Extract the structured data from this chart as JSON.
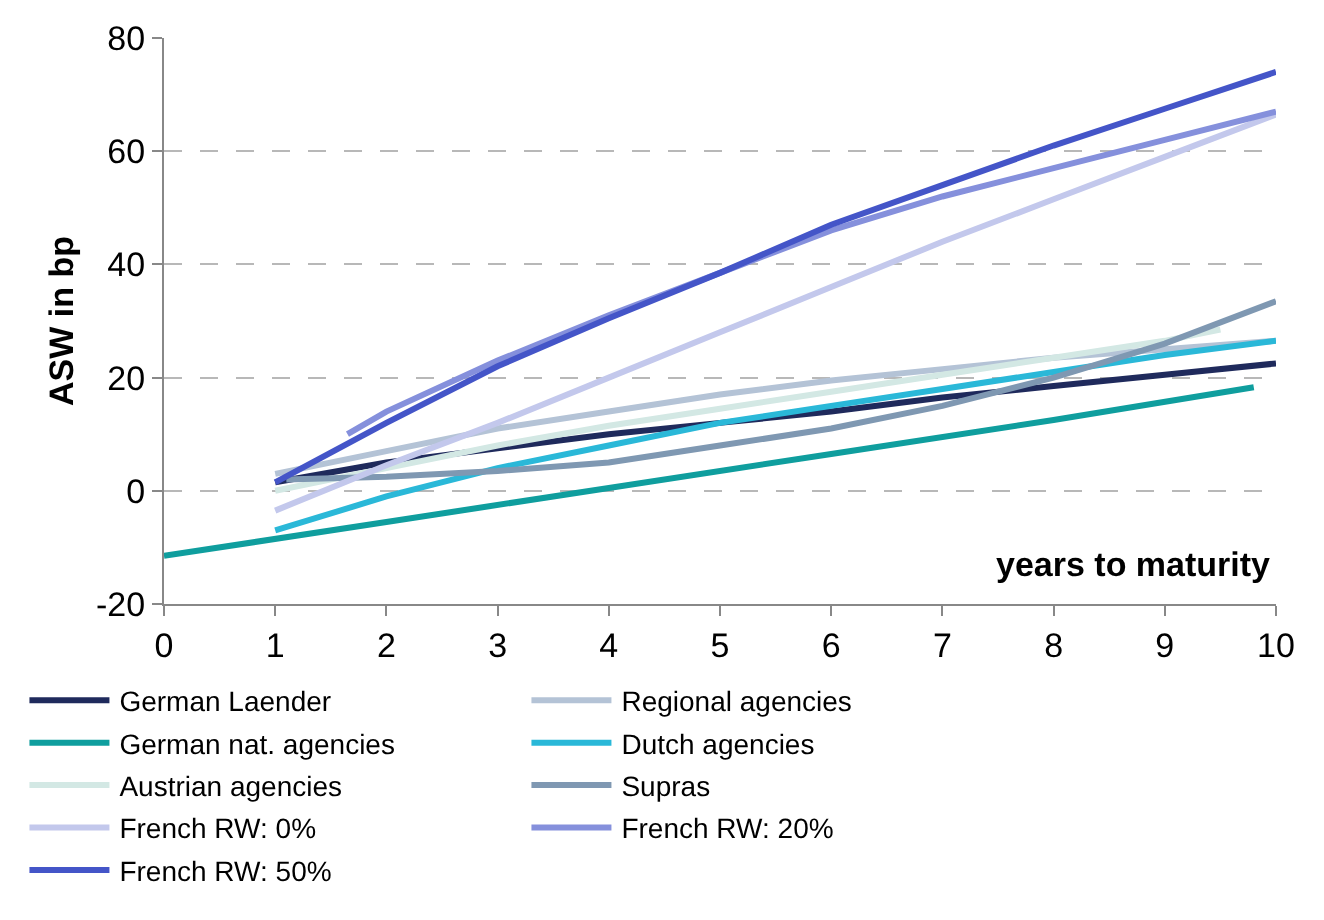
{
  "chart_data": {
    "type": "line",
    "ylabel": "ASW in bp",
    "xlabel": "years to maturity",
    "xlim": [
      0,
      10
    ],
    "xticks": [
      0,
      1,
      2,
      3,
      4,
      5,
      6,
      7,
      8,
      9,
      10
    ],
    "ylim": [
      -20,
      80
    ],
    "yticks": [
      -20,
      0,
      20,
      40,
      60,
      80
    ],
    "grid": "y",
    "legend": "bottom",
    "line_style": "solid",
    "marker": "none",
    "series": [
      {
        "name": "German Laender",
        "color": "#1f2a5c",
        "x": [
          1,
          2,
          3,
          4,
          5,
          6,
          7,
          8,
          9,
          10
        ],
        "values": [
          1.5,
          5,
          7.5,
          10,
          12,
          14,
          16.5,
          18.5,
          20.5,
          22.5
        ]
      },
      {
        "name": "Regional agencies",
        "color": "#b4c3d6",
        "x": [
          1,
          2,
          3,
          4,
          5,
          6,
          7,
          8,
          9,
          10
        ],
        "values": [
          3,
          7,
          11,
          14,
          17,
          19.5,
          21.5,
          23.5,
          25,
          26.5
        ]
      },
      {
        "name": "German nat. agencies",
        "color": "#0f9e9e",
        "x": [
          0,
          2,
          4,
          6,
          8,
          9.8
        ],
        "values": [
          -11.5,
          -5.5,
          0.5,
          6.5,
          12.5,
          18.3
        ]
      },
      {
        "name": "Dutch agencies",
        "color": "#2ab8d8",
        "x": [
          1,
          2,
          3,
          4,
          5,
          6,
          7,
          8,
          9,
          10
        ],
        "values": [
          -7,
          -1,
          4,
          8,
          12,
          15,
          18,
          21,
          24,
          26.5
        ]
      },
      {
        "name": "Austrian agencies",
        "color": "#d3e8e4",
        "x": [
          1,
          2,
          3,
          4,
          5,
          6,
          7,
          8,
          9,
          9.5
        ],
        "values": [
          0,
          4,
          8,
          11.5,
          14.5,
          17.5,
          20.5,
          23.5,
          26.5,
          28.5
        ]
      },
      {
        "name": "Supras",
        "color": "#7f98b2",
        "x": [
          1.1,
          2,
          3,
          4,
          5,
          6,
          7,
          8,
          9,
          10
        ],
        "values": [
          2,
          2.5,
          3.5,
          5,
          8,
          11,
          15,
          20,
          26,
          33.5
        ]
      },
      {
        "name": "French RW: 0%",
        "color": "#c3c8ec",
        "x": [
          1,
          2,
          3,
          4,
          5,
          6,
          7,
          8,
          9,
          10
        ],
        "values": [
          -3.5,
          4.5,
          12,
          20,
          28,
          36,
          44,
          51.5,
          59,
          66.5
        ]
      },
      {
        "name": "French RW: 20%",
        "color": "#8590dc",
        "x": [
          1.65,
          2,
          3,
          4,
          5,
          6,
          7,
          8,
          9,
          10
        ],
        "values": [
          10,
          14,
          23,
          31,
          38.5,
          46,
          52,
          57,
          62,
          67
        ]
      },
      {
        "name": "French RW: 50%",
        "color": "#4455c8",
        "x": [
          1,
          2,
          3,
          4,
          5,
          6,
          7,
          8,
          9,
          10
        ],
        "values": [
          1.5,
          12,
          22,
          30.5,
          38.5,
          47,
          54,
          61,
          67.5,
          74
        ]
      }
    ]
  }
}
